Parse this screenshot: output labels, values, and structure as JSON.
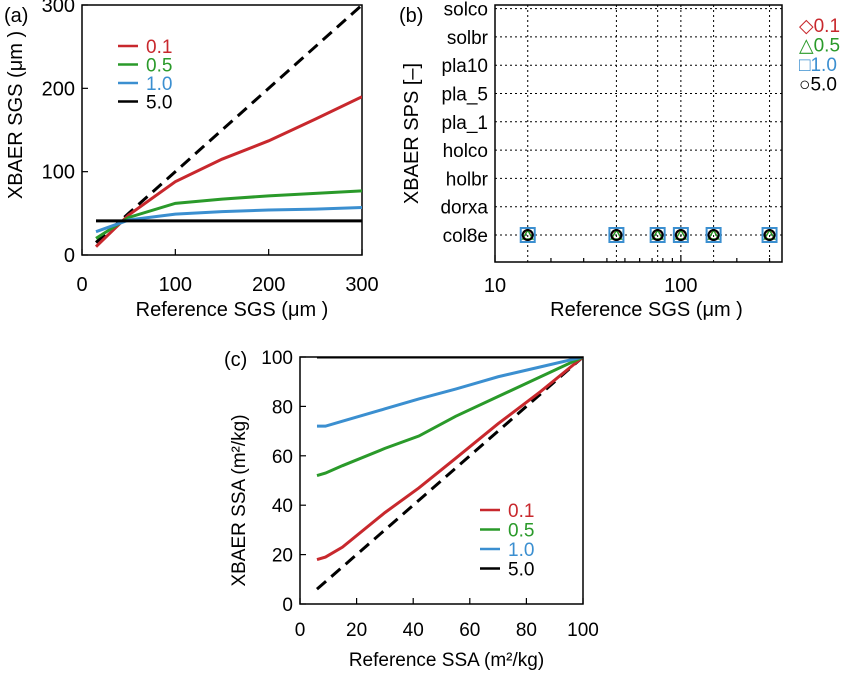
{
  "colors": {
    "0.1": "#c8282d",
    "0.5": "#2a9a2a",
    "1.0": "#3b8fd0",
    "5.0": "#000000"
  },
  "chart_data": [
    {
      "panel_label": "(a)",
      "type": "line",
      "xlabel": "Reference SGS (μm )",
      "ylabel": "XBAER SGS (μm )",
      "xlim": [
        0,
        300
      ],
      "ylim": [
        0,
        300
      ],
      "xticks": [
        "0",
        "100",
        "200",
        "300"
      ],
      "yticks": [
        "0",
        "100",
        "200",
        "300"
      ],
      "legend_position": "top-left",
      "legend": [
        "0.1",
        "0.5",
        "1.0",
        "5.0"
      ],
      "reference_line": "1:1 dashed",
      "series": [
        {
          "name": "0.1",
          "x": [
            15,
            50,
            100,
            150,
            200,
            250,
            300
          ],
          "y": [
            10,
            48,
            88,
            115,
            137,
            163,
            190
          ]
        },
        {
          "name": "0.5",
          "x": [
            15,
            50,
            100,
            150,
            200,
            250,
            300
          ],
          "y": [
            20,
            45,
            62,
            67,
            71,
            74,
            77
          ]
        },
        {
          "name": "1.0",
          "x": [
            15,
            50,
            100,
            150,
            200,
            250,
            300
          ],
          "y": [
            28,
            42,
            49,
            52,
            54,
            55,
            57
          ]
        },
        {
          "name": "5.0",
          "x": [
            15,
            300
          ],
          "y": [
            41,
            41
          ]
        }
      ]
    },
    {
      "panel_label": "(b)",
      "type": "scatter",
      "xlabel": "Reference SGS (μm )",
      "ylabel": "XBAER SPS [–]",
      "x_scale": "log",
      "xlim": [
        10,
        350
      ],
      "xticks": [
        "10",
        "100"
      ],
      "categories": [
        "col8e",
        "dorxa",
        "holbr",
        "holco",
        "pla_1",
        "pla_5",
        "pla10",
        "solbr",
        "solco"
      ],
      "grid": true,
      "legend_position": "outside-right",
      "legend": [
        "◇0.1",
        "△0.5",
        "□1.0",
        "○5.0"
      ],
      "series": [
        {
          "name": "0.1",
          "marker": "diamond",
          "x": [
            15,
            45,
            75,
            100,
            150,
            300
          ],
          "category": "col8e"
        },
        {
          "name": "0.5",
          "marker": "triangle",
          "x": [
            15,
            45,
            75,
            100,
            150,
            300
          ],
          "category": "col8e"
        },
        {
          "name": "1.0",
          "marker": "square",
          "x": [
            15,
            45,
            75,
            100,
            150,
            300
          ],
          "category": "col8e"
        },
        {
          "name": "5.0",
          "marker": "circle",
          "x": [
            15,
            45,
            75,
            100,
            150,
            300
          ],
          "category": "col8e"
        }
      ]
    },
    {
      "panel_label": "(c)",
      "type": "line",
      "xlabel": "Reference SSA (m²/kg)",
      "ylabel": "XBAER SSA (m²/kg)",
      "xlim": [
        0,
        100
      ],
      "ylim": [
        0,
        100
      ],
      "xticks": [
        "0",
        "20",
        "40",
        "60",
        "80",
        "100"
      ],
      "yticks": [
        "0",
        "20",
        "40",
        "60",
        "80",
        "100"
      ],
      "legend_position": "bottom-right",
      "legend": [
        "0.1",
        "0.5",
        "1.0",
        "5.0"
      ],
      "reference_line": "1:1 dashed",
      "series": [
        {
          "name": "0.1",
          "x": [
            6,
            9,
            15,
            30,
            42,
            55,
            70,
            85,
            100
          ],
          "y": [
            18,
            19,
            23,
            37,
            47,
            59,
            73,
            86,
            100
          ]
        },
        {
          "name": "0.5",
          "x": [
            6,
            9,
            15,
            30,
            42,
            55,
            70,
            85,
            100
          ],
          "y": [
            52,
            53,
            56,
            63,
            68,
            76,
            84,
            92,
            100
          ]
        },
        {
          "name": "1.0",
          "x": [
            6,
            9,
            15,
            30,
            42,
            55,
            70,
            85,
            100
          ],
          "y": [
            72,
            72,
            74,
            79,
            83,
            87,
            92,
            96,
            100
          ]
        },
        {
          "name": "5.0",
          "x": [
            6,
            100
          ],
          "y": [
            100,
            100
          ]
        }
      ]
    }
  ]
}
